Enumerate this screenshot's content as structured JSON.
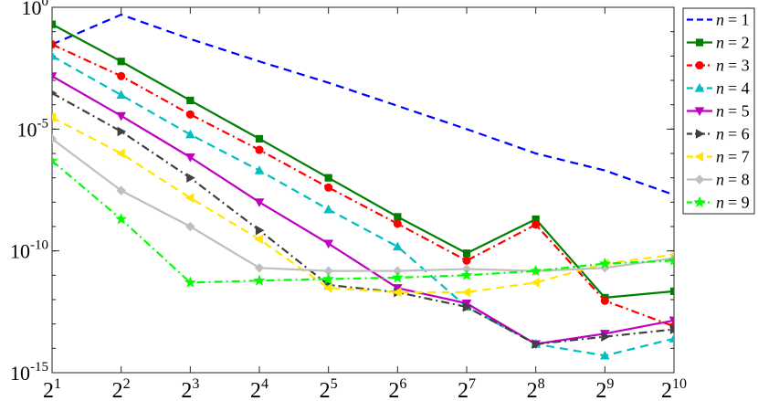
{
  "chart_data": {
    "type": "line",
    "xscale": "log2",
    "yscale": "log10",
    "x": [
      2,
      4,
      8,
      16,
      32,
      64,
      128,
      256,
      512,
      1024
    ],
    "x_tick_labels": [
      {
        "base": "2",
        "exp": "1"
      },
      {
        "base": "2",
        "exp": "2"
      },
      {
        "base": "2",
        "exp": "3"
      },
      {
        "base": "2",
        "exp": "4"
      },
      {
        "base": "2",
        "exp": "5"
      },
      {
        "base": "2",
        "exp": "6"
      },
      {
        "base": "2",
        "exp": "7"
      },
      {
        "base": "2",
        "exp": "8"
      },
      {
        "base": "2",
        "exp": "9"
      },
      {
        "base": "2",
        "exp": "10"
      }
    ],
    "y_tick_labels": [
      {
        "value": 1,
        "base": "10",
        "exp": "0"
      },
      {
        "value": 1e-05,
        "base": "10",
        "exp": "-5"
      },
      {
        "value": 1e-10,
        "base": "10",
        "exp": "-10"
      },
      {
        "value": 1e-15,
        "base": "10",
        "exp": "-15"
      }
    ],
    "xlim": [
      2,
      1024
    ],
    "ylim": [
      1e-15,
      1
    ],
    "grid": false,
    "legend_position": "right",
    "title": "",
    "xlabel": "",
    "ylabel": "",
    "series": [
      {
        "name": "n = 1",
        "label_var": "n",
        "label_eq": "= 1",
        "color": "#0000ff",
        "dash": "dashed",
        "marker": "none",
        "values": [
          0.03,
          0.5,
          0.05,
          0.006,
          0.0008,
          9e-05,
          1e-05,
          1e-06,
          2e-07,
          2e-08
        ]
      },
      {
        "name": "n = 2",
        "label_var": "n",
        "label_eq": "= 2",
        "color": "#007f00",
        "dash": "solid",
        "marker": "square",
        "values": [
          0.2,
          0.006,
          0.00015,
          4e-06,
          1e-07,
          2.5e-09,
          8e-11,
          2e-09,
          1.2e-12,
          2.2e-12
        ]
      },
      {
        "name": "n = 3",
        "label_var": "n",
        "label_eq": "= 3",
        "color": "#ff0000",
        "dash": "dashdot",
        "marker": "circle",
        "values": [
          0.03,
          0.0015,
          4e-05,
          1.4e-06,
          4e-08,
          1.3e-09,
          4e-11,
          1.2e-09,
          9e-13,
          8e-14
        ]
      },
      {
        "name": "n = 4",
        "label_var": "n",
        "label_eq": "= 4",
        "color": "#00bfbf",
        "dash": "dashed",
        "marker": "triangle-up",
        "values": [
          0.01,
          0.00025,
          6e-06,
          2e-07,
          5e-09,
          1.5e-10,
          5e-13,
          1.5e-14,
          5e-15,
          2.5e-14
        ]
      },
      {
        "name": "n = 5",
        "label_var": "n",
        "label_eq": "= 5",
        "color": "#bf00bf",
        "dash": "solid",
        "marker": "triangle-down",
        "values": [
          0.0015,
          3.5e-05,
          7e-07,
          1e-08,
          2e-10,
          3e-12,
          7e-13,
          1.5e-14,
          4e-14,
          1.4e-13
        ]
      },
      {
        "name": "n = 6",
        "label_var": "n",
        "label_eq": "= 6",
        "color": "#404040",
        "dash": "dashdot",
        "marker": "triangle-right",
        "values": [
          0.0003,
          8e-06,
          1e-07,
          7e-10,
          4e-12,
          2e-12,
          5e-13,
          1.5e-14,
          3e-14,
          6e-14
        ]
      },
      {
        "name": "n = 7",
        "label_var": "n",
        "label_eq": "= 7",
        "color": "#ffe600",
        "dash": "dashed",
        "marker": "triangle-left",
        "values": [
          3e-05,
          1e-06,
          1.5e-08,
          3e-10,
          3e-12,
          2e-12,
          2e-12,
          5e-12,
          3e-11,
          7e-11
        ]
      },
      {
        "name": "n = 8",
        "label_var": "n",
        "label_eq": "= 8",
        "color": "#bfbfbf",
        "dash": "solid",
        "marker": "diamond",
        "values": [
          4e-06,
          3e-08,
          1e-09,
          2e-11,
          1.5e-11,
          1.5e-11,
          1.8e-11,
          1.5e-11,
          2e-11,
          5e-11
        ]
      },
      {
        "name": "n = 9",
        "label_var": "n",
        "label_eq": "= 9",
        "color": "#00ff00",
        "dash": "dashdot",
        "marker": "star",
        "values": [
          5e-07,
          2e-09,
          5e-12,
          6e-12,
          7e-12,
          8e-12,
          1e-11,
          1.5e-11,
          3e-11,
          4e-11
        ]
      }
    ]
  }
}
